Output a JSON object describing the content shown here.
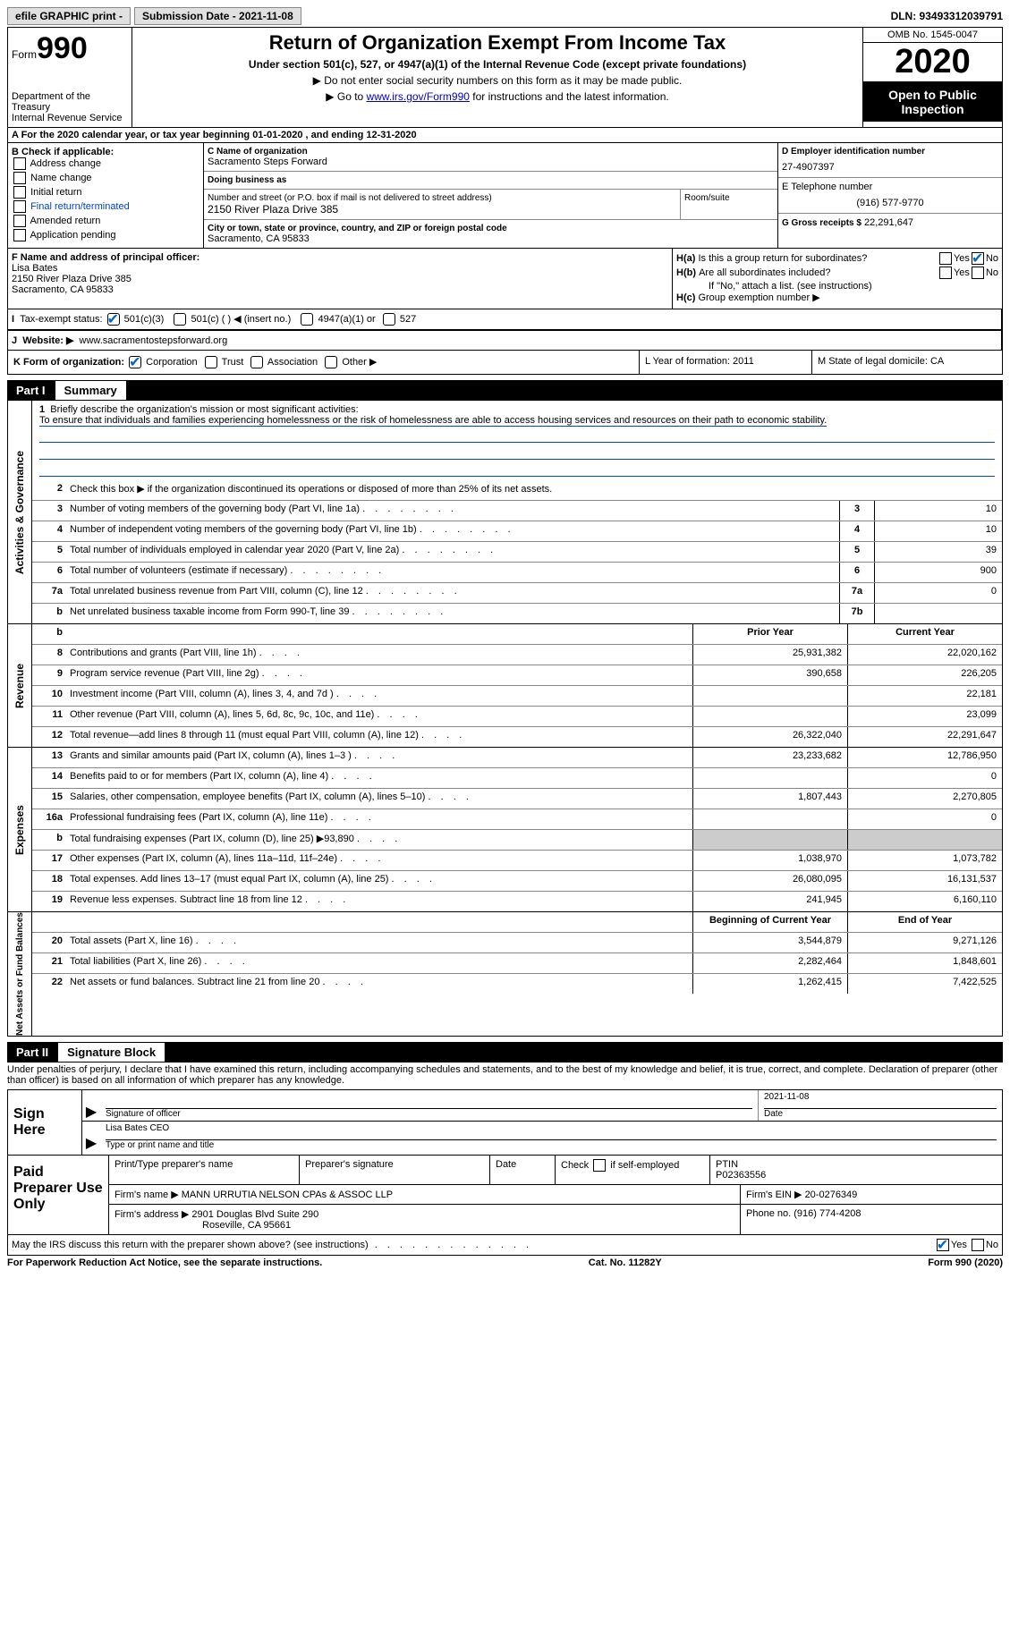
{
  "topbar": {
    "efile": "efile GRAPHIC print -",
    "submission": "Submission Date - 2021-11-08",
    "dln": "DLN: 93493312039791"
  },
  "header": {
    "form_label": "Form",
    "form_num": "990",
    "dept1": "Department of the Treasury",
    "dept2": "Internal Revenue Service",
    "title": "Return of Organization Exempt From Income Tax",
    "sub": "Under section 501(c), 527, or 4947(a)(1) of the Internal Revenue Code (except private foundations)",
    "note1": "▶ Do not enter social security numbers on this form as it may be made public.",
    "note2_pre": "▶ Go to ",
    "note2_link": "www.irs.gov/Form990",
    "note2_post": " for instructions and the latest information.",
    "omb": "OMB No. 1545-0047",
    "year": "2020",
    "open": "Open to Public Inspection"
  },
  "sectionA": "A  For the 2020 calendar year, or tax year beginning 01-01-2020    , and ending 12-31-2020",
  "colB": {
    "hdr": "B Check if applicable:",
    "items": [
      "Address change",
      "Name change",
      "Initial return",
      "Final return/terminated",
      "Amended return",
      "Application pending"
    ]
  },
  "colC": {
    "name_lbl": "C Name of organization",
    "name": "Sacramento Steps Forward",
    "dba_lbl": "Doing business as",
    "dba": "",
    "addr_lbl": "Number and street (or P.O. box if mail is not delivered to street address)",
    "addr": "2150 River Plaza Drive 385",
    "room_lbl": "Room/suite",
    "city_lbl": "City or town, state or province, country, and ZIP or foreign postal code",
    "city": "Sacramento, CA  95833"
  },
  "colD": {
    "ein_lbl": "D Employer identification number",
    "ein": "27-4907397",
    "e_lbl": "E Telephone number",
    "phone": "(916) 577-9770",
    "g_lbl": "G Gross receipts $",
    "gross": "22,291,647"
  },
  "rowF": {
    "lbl": "F Name and address of principal officer:",
    "name": "Lisa Bates",
    "addr1": "2150 River Plaza Drive 385",
    "addr2": "Sacramento, CA  95833"
  },
  "rowH": {
    "a": "Is this a group return for subordinates?",
    "b": "Are all subordinates included?",
    "bnote": "If \"No,\" attach a list. (see instructions)",
    "c": "Group exemption number ▶",
    "ha_lbl": "H(a)",
    "hb_lbl": "H(b)",
    "hc_lbl": "H(c)",
    "yes": "Yes",
    "no": "No"
  },
  "rowI": {
    "lbl": "Tax-exempt status:",
    "o1": "501(c)(3)",
    "o2": "501(c) (   ) ◀ (insert no.)",
    "o3": "4947(a)(1) or",
    "o4": "527"
  },
  "rowJ": {
    "lbl": "Website: ▶",
    "val": "www.sacramentostepsforward.org"
  },
  "rowK": {
    "lbl": "K Form of organization:",
    "o1": "Corporation",
    "o2": "Trust",
    "o3": "Association",
    "o4": "Other ▶",
    "L": "L Year of formation: 2011",
    "M": "M State of legal domicile: CA"
  },
  "part1": {
    "num": "Part I",
    "title": "Summary",
    "tab_gov": "Activities & Governance",
    "tab_rev": "Revenue",
    "tab_exp": "Expenses",
    "tab_net": "Net Assets or Fund Balances",
    "q1_lbl": "Briefly describe the organization's mission or most significant activities:",
    "q1_txt": "To ensure that individuals and families experiencing homelessness or the risk of homelessness are able to access housing services and resources on their path to economic stability.",
    "q2": "Check this box ▶         if the organization discontinued its operations or disposed of more than 25% of its net assets.",
    "lines_gov": [
      {
        "n": "3",
        "t": "Number of voting members of the governing body (Part VI, line 1a)",
        "ln": "3",
        "v": "10"
      },
      {
        "n": "4",
        "t": "Number of independent voting members of the governing body (Part VI, line 1b)",
        "ln": "4",
        "v": "10"
      },
      {
        "n": "5",
        "t": "Total number of individuals employed in calendar year 2020 (Part V, line 2a)",
        "ln": "5",
        "v": "39"
      },
      {
        "n": "6",
        "t": "Total number of volunteers (estimate if necessary)",
        "ln": "6",
        "v": "900"
      },
      {
        "n": "7a",
        "t": "Total unrelated business revenue from Part VIII, column (C), line 12",
        "ln": "7a",
        "v": "0"
      },
      {
        "n": "b",
        "t": "Net unrelated business taxable income from Form 990-T, line 39",
        "ln": "7b",
        "v": ""
      }
    ],
    "hdr_prior": "Prior Year",
    "hdr_curr": "Current Year",
    "hdr_beg": "Beginning of Current Year",
    "hdr_end": "End of Year",
    "lines_rev": [
      {
        "n": "8",
        "t": "Contributions and grants (Part VIII, line 1h)",
        "py": "25,931,382",
        "cy": "22,020,162"
      },
      {
        "n": "9",
        "t": "Program service revenue (Part VIII, line 2g)",
        "py": "390,658",
        "cy": "226,205"
      },
      {
        "n": "10",
        "t": "Investment income (Part VIII, column (A), lines 3, 4, and 7d )",
        "py": "",
        "cy": "22,181"
      },
      {
        "n": "11",
        "t": "Other revenue (Part VIII, column (A), lines 5, 6d, 8c, 9c, 10c, and 11e)",
        "py": "",
        "cy": "23,099"
      },
      {
        "n": "12",
        "t": "Total revenue—add lines 8 through 11 (must equal Part VIII, column (A), line 12)",
        "py": "26,322,040",
        "cy": "22,291,647"
      }
    ],
    "lines_exp": [
      {
        "n": "13",
        "t": "Grants and similar amounts paid (Part IX, column (A), lines 1–3 )",
        "py": "23,233,682",
        "cy": "12,786,950"
      },
      {
        "n": "14",
        "t": "Benefits paid to or for members (Part IX, column (A), line 4)",
        "py": "",
        "cy": "0"
      },
      {
        "n": "15",
        "t": "Salaries, other compensation, employee benefits (Part IX, column (A), lines 5–10)",
        "py": "1,807,443",
        "cy": "2,270,805"
      },
      {
        "n": "16a",
        "t": "Professional fundraising fees (Part IX, column (A), line 11e)",
        "py": "",
        "cy": "0"
      },
      {
        "n": "b",
        "t": "Total fundraising expenses (Part IX, column (D), line 25) ▶93,890",
        "py": "shade",
        "cy": "shade"
      },
      {
        "n": "17",
        "t": "Other expenses (Part IX, column (A), lines 11a–11d, 11f–24e)",
        "py": "1,038,970",
        "cy": "1,073,782"
      },
      {
        "n": "18",
        "t": "Total expenses. Add lines 13–17 (must equal Part IX, column (A), line 25)",
        "py": "26,080,095",
        "cy": "16,131,537"
      },
      {
        "n": "19",
        "t": "Revenue less expenses. Subtract line 18 from line 12",
        "py": "241,945",
        "cy": "6,160,110"
      }
    ],
    "lines_net": [
      {
        "n": "20",
        "t": "Total assets (Part X, line 16)",
        "py": "3,544,879",
        "cy": "9,271,126"
      },
      {
        "n": "21",
        "t": "Total liabilities (Part X, line 26)",
        "py": "2,282,464",
        "cy": "1,848,601"
      },
      {
        "n": "22",
        "t": "Net assets or fund balances. Subtract line 21 from line 20",
        "py": "1,262,415",
        "cy": "7,422,525"
      }
    ]
  },
  "part2": {
    "num": "Part II",
    "title": "Signature Block",
    "decl": "Under penalties of perjury, I declare that I have examined this return, including accompanying schedules and statements, and to the best of my knowledge and belief, it is true, correct, and complete. Declaration of preparer (other than officer) is based on all information of which preparer has any knowledge.",
    "sign_here": "Sign Here",
    "sig_of": "Signature of officer",
    "sig_date_lbl": "Date",
    "sig_date": "2021-11-08",
    "sig_name": "Lisa Bates CEO",
    "sig_name_lbl": "Type or print name and title",
    "paid": "Paid Preparer Use Only",
    "p_name_lbl": "Print/Type preparer's name",
    "p_sig_lbl": "Preparer's signature",
    "p_date_lbl": "Date",
    "p_check_lbl": "Check          if self-employed",
    "p_ptin_lbl": "PTIN",
    "p_ptin": "P02363556",
    "p_firm_lbl": "Firm's name     ▶",
    "p_firm": "MANN URRUTIA NELSON CPAs & ASSOC LLP",
    "p_ein_lbl": "Firm's EIN ▶",
    "p_ein": "20-0276349",
    "p_addr_lbl": "Firm's address ▶",
    "p_addr1": "2901 Douglas Blvd Suite 290",
    "p_addr2": "Roseville, CA  95661",
    "p_phone_lbl": "Phone no.",
    "p_phone": "(916) 774-4208",
    "discuss": "May the IRS discuss this return with the preparer shown above? (see instructions)",
    "yes": "Yes",
    "no": "No"
  },
  "footer": {
    "pra": "For Paperwork Reduction Act Notice, see the separate instructions.",
    "cat": "Cat. No. 11282Y",
    "form": "Form 990 (2020)"
  }
}
